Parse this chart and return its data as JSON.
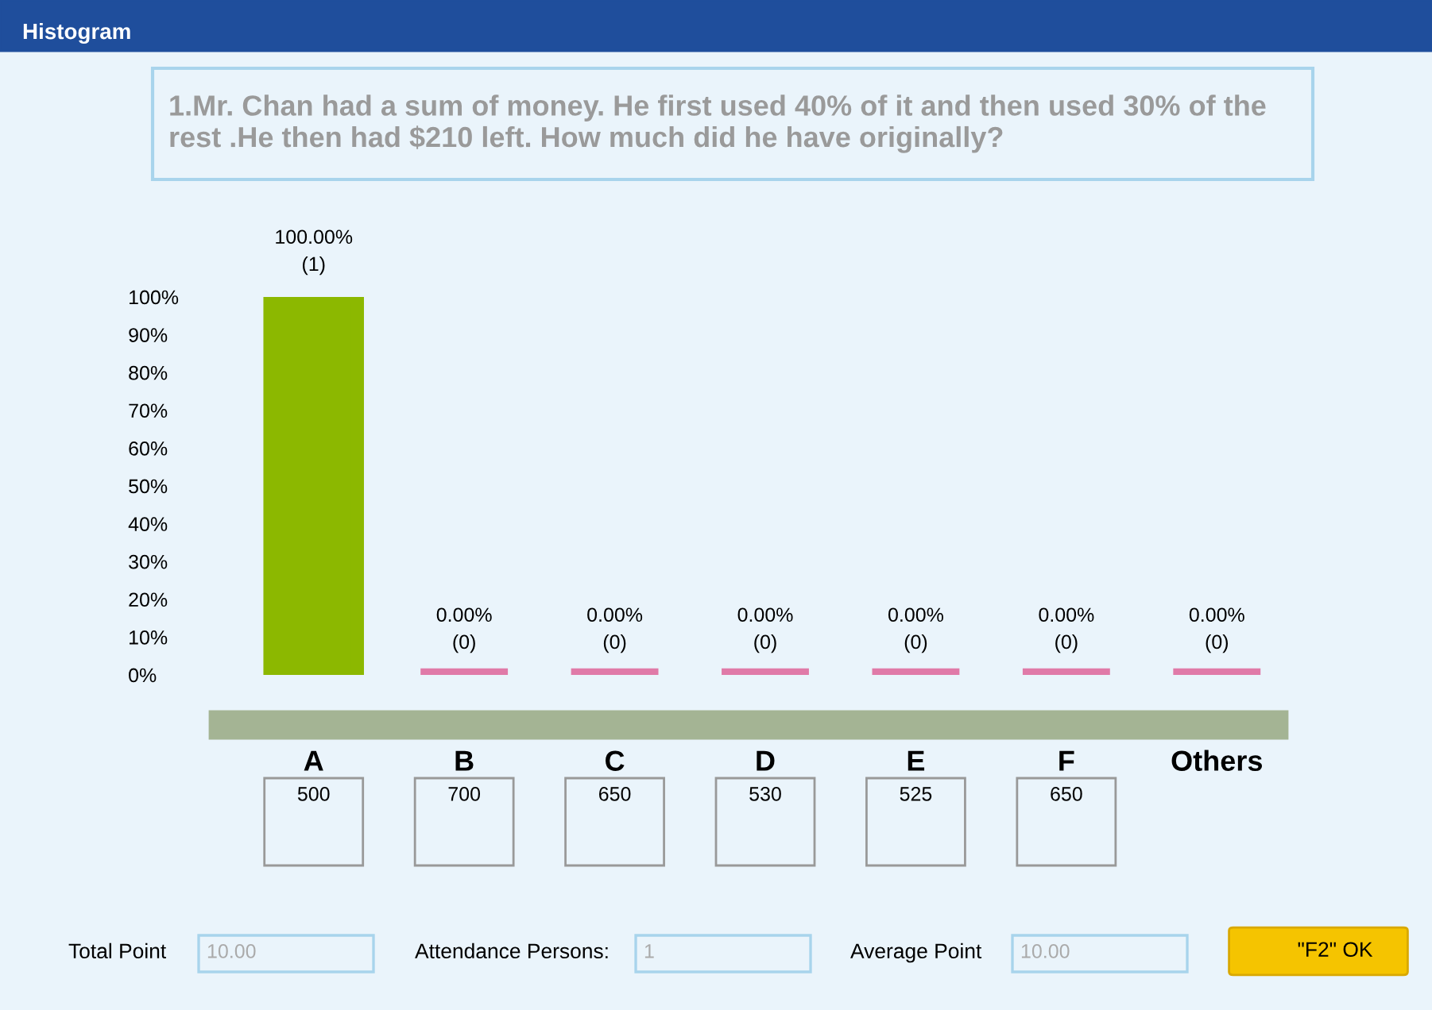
{
  "chart_data": {
    "type": "bar",
    "title": "Histogram",
    "subtitle": "1.Mr. Chan had a sum of money. He first used 40% of it and then used 30% of the rest .He then had $210 left. How much did he have originally?",
    "categories": [
      "A",
      "B",
      "C",
      "D",
      "E",
      "F",
      "Others"
    ],
    "values": [
      100,
      0,
      0,
      0,
      0,
      0,
      0
    ],
    "colors": [
      "#8cb800",
      "#e07aa8",
      "#e07aa8",
      "#e07aa8",
      "#e07aa8",
      "#e07aa8",
      "#e07aa8"
    ],
    "value_labels": [
      "100.00%\n(1)",
      "0.00%\n(0)",
      "0.00%\n(0)",
      "0.00%\n(0)",
      "0.00%\n(0)",
      "0.00%\n(0)",
      "0.00%\n(0)"
    ],
    "ylim": [
      0,
      100
    ],
    "yticks": [
      {
        "value": 0,
        "label": "0%"
      },
      {
        "value": 10,
        "label": "10%"
      },
      {
        "value": 20,
        "label": "20%"
      },
      {
        "value": 30,
        "label": "30%"
      },
      {
        "value": 40,
        "label": "40%"
      },
      {
        "value": 50,
        "label": "50%"
      },
      {
        "value": 60,
        "label": "60%"
      },
      {
        "value": 70,
        "label": "70%"
      },
      {
        "value": 80,
        "label": "80%"
      },
      {
        "value": 90,
        "label": "90%"
      },
      {
        "value": 100,
        "label": "100%"
      }
    ],
    "grid": false,
    "annotations": [
      "500",
      "700",
      "650",
      "530",
      "525",
      "650",
      "Total Point",
      "10.00",
      "Attendance Persons:",
      "1",
      "Average Point",
      "10.00",
      "\"F2\" OK"
    ]
  }
}
